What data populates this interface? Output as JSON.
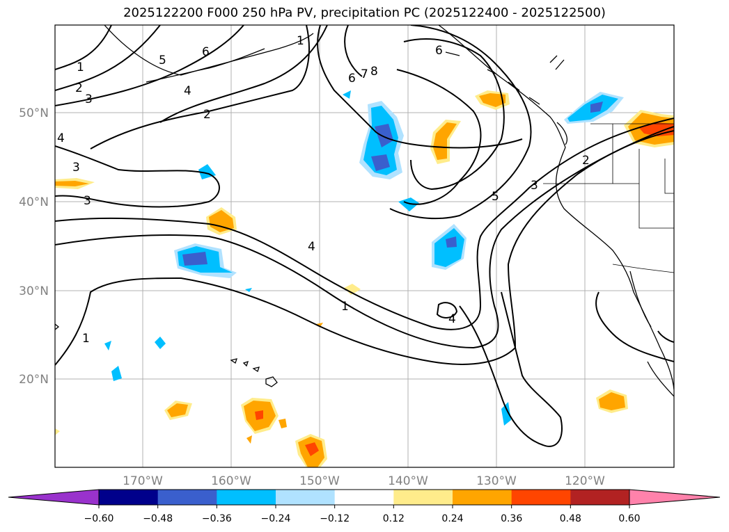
{
  "title": "2025122200 F000 250 hPa PV, precipitation PC (2025122400 - 2025122500)",
  "lat_labels": [
    "50°N",
    "40°N",
    "30°N",
    "20°N"
  ],
  "lon_labels": [
    "170°W",
    "160°W",
    "150°W",
    "140°W",
    "130°W",
    "120°W"
  ],
  "colorbar": {
    "ticks": [
      "−0.60",
      "−0.48",
      "−0.36",
      "−0.24",
      "−0.12",
      "0.12",
      "0.24",
      "0.36",
      "0.48",
      "0.60"
    ],
    "colors": {
      "under": "#9932cc",
      "bins": [
        "#00008b",
        "#3a5fcd",
        "#00bfff",
        "#b0e2ff",
        "#ffffff",
        "#ffec8b",
        "#ffa500",
        "#ff4500",
        "#b22222"
      ],
      "over": "#ff82ab"
    }
  },
  "contour_labels": [
    "1",
    "2",
    "3",
    "4",
    "5",
    "6",
    "7",
    "8",
    "6",
    "4",
    "2",
    "1",
    "3",
    "3",
    "4",
    "1",
    "4",
    "5",
    "3",
    "2",
    "6",
    "1"
  ]
}
